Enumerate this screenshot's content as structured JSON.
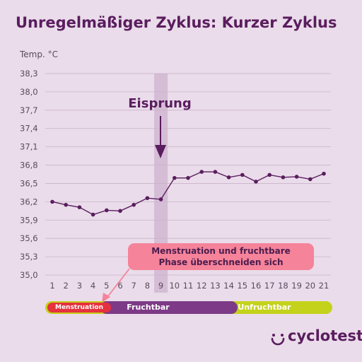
{
  "title": "Unregelmäßiger Zyklus: Kurzer Zyklus",
  "y_axis_label": "Temp. °C",
  "colors": {
    "background": "#eadcea",
    "line": "#5a1d5e",
    "ovulation_band": "#d5bdd6",
    "callout": "#f5839a",
    "menstruation": "#e5323e",
    "fruchtbar": "#7d3a86",
    "unfruchtbar": "#c4d21b"
  },
  "chart_data": {
    "type": "line",
    "title": "Unregelmäßiger Zyklus: Kurzer Zyklus",
    "ylabel": "Temp. °C",
    "xlabel": "",
    "x": [
      1,
      2,
      3,
      4,
      5,
      6,
      7,
      8,
      9,
      10,
      11,
      12,
      13,
      14,
      15,
      16,
      17,
      18,
      19,
      20,
      21
    ],
    "yticks": [
      "38,3",
      "38,0",
      "37,7",
      "37,4",
      "37,1",
      "36,8",
      "36,5",
      "36,2",
      "35,9",
      "35,6",
      "35,3",
      "35,0"
    ],
    "ylim": [
      35.0,
      38.3
    ],
    "grid": "horizontal",
    "series": [
      {
        "values": [
          36.2,
          36.15,
          36.11,
          35.99,
          36.06,
          36.05,
          36.15,
          36.26,
          36.24,
          36.59,
          36.59,
          36.69,
          36.69,
          36.6,
          36.64,
          36.53,
          36.64,
          36.6,
          36.61,
          36.57,
          36.66
        ]
      }
    ],
    "highlight_day": 9,
    "annotation": "Eisprung"
  },
  "callout": {
    "text": "Menstruation und fruchtbare Phase überschneiden sich"
  },
  "phases": {
    "menstruation": "Menstruation",
    "fruchtbar": "Fruchtbar",
    "unfruchtbar": "Unfruchtbar"
  },
  "brand": {
    "name": "cyclotest",
    "icon": "cyclotest-logo-icon"
  }
}
